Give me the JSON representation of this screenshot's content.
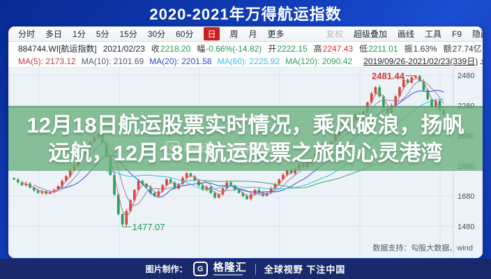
{
  "header": {
    "title": "2020-2021年万得航运指数"
  },
  "toolbar": {
    "left_items": [
      {
        "label": "分时"
      },
      {
        "label": "多日"
      },
      {
        "label": "1分"
      },
      {
        "label": "5分"
      },
      {
        "label": "15分"
      },
      {
        "label": "30分"
      },
      {
        "label": "60分"
      },
      {
        "label": "日"
      },
      {
        "label": "周"
      },
      {
        "label": "月"
      },
      {
        "label": "更多"
      }
    ],
    "right_items": [
      {
        "label": "复权"
      },
      {
        "label": "超级叠加"
      },
      {
        "label": "画线"
      },
      {
        "label": "工具"
      },
      {
        "label": "F9"
      },
      {
        "label": "隐藏"
      }
    ]
  },
  "info_row": {
    "symbol": "884744.WI[航运指数]",
    "date": "2021/02/23",
    "fields": [
      {
        "label": "收",
        "value": "2218.20",
        "color": "#189a50"
      },
      {
        "label": "幅",
        "value": "-0.66%(-14.82)",
        "color": "#189a50"
      },
      {
        "label": "开",
        "value": "2222.15",
        "color": "#189a50"
      },
      {
        "label": "高",
        "value": "2247.43",
        "color": "#d8322f"
      },
      {
        "label": "低",
        "value": "2211.01",
        "color": "#189a50"
      },
      {
        "label": "振",
        "value": "1.63%",
        "color": "#33363e"
      },
      {
        "label": "额",
        "value": "27.74亿",
        "color": "#33363e"
      }
    ]
  },
  "ma_row": {
    "items": [
      {
        "label": "MA(5):",
        "value": "2173.12",
        "color": "#c43a40"
      },
      {
        "label": "MA(10):",
        "value": "2101.69",
        "color": "#4f5b6e"
      },
      {
        "label": "MA(20):",
        "value": "2201.58",
        "color": "#2c49cc"
      },
      {
        "label": "MA(60):",
        "value": "2225.92",
        "color": "#38bede"
      },
      {
        "label": "MA(120):",
        "value": "2090.42",
        "color": "#2fa05e"
      }
    ],
    "range": "2019/09/26-2021/02/23(339日)",
    "dropdown_icon": "▼"
  },
  "overlay": {
    "line1": "12月18日航运股票实时情况，乘风破浪，扬帆",
    "line2": "远航，12月18日航运股票之旅的心灵港湾",
    "watermark": {
      "logo_letter": "G",
      "brand": "格隆汇",
      "divider": "|",
      "text": "勾股大数据"
    }
  },
  "chart_note": "数据支持：勾股大数据、wind",
  "footer": {
    "prefix": "图片制作：",
    "logo_letter": "G",
    "brand": "格隆汇",
    "slogan": "全球视野 下注中国"
  },
  "chart_data": {
    "type": "candlestick",
    "title": "万得航运指数 日K线",
    "x_range_label": "2019/09/26-2021/02/23(339日)",
    "y_ticks": [
      2480,
      2280,
      2080,
      1880,
      1680,
      1480
    ],
    "y_range": [
      1430,
      2540
    ],
    "grid": true,
    "up_color": "#d8433b",
    "down_color": "#1fa358",
    "annotations": {
      "high": {
        "value": 2481.44,
        "index": 100
      },
      "low": {
        "value": 1477.07,
        "index": 27
      },
      "last_close": 2218.2,
      "prev_change_pct": "-0.66%"
    },
    "closes": [
      1790,
      1772,
      1752,
      1763,
      1736,
      1718,
      1701,
      1713,
      1696,
      1706,
      1722,
      1746,
      1781,
      1812,
      1851,
      1882,
      1921,
      1962,
      2001,
      2042,
      2071,
      2092,
      2031,
      1941,
      1821,
      1691,
      1561,
      1492,
      1581,
      1652,
      1721,
      1781,
      1762,
      1741,
      1701,
      1681,
      1711,
      1751,
      1791,
      1771,
      1731,
      1761,
      1801,
      1831,
      1811,
      1781,
      1751,
      1721,
      1741,
      1701,
      1671,
      1691,
      1731,
      1771,
      1751,
      1721,
      1701,
      1681,
      1661,
      1691,
      1721,
      1701,
      1681,
      1701,
      1731,
      1761,
      1791,
      1821,
      1851,
      1831,
      1861,
      1891,
      1871,
      1901,
      1931,
      1961,
      1991,
      2021,
      2001,
      2041,
      2081,
      2121,
      2161,
      2141,
      2181,
      2221,
      2201,
      2241,
      2301,
      2361,
      2401,
      2341,
      2261,
      2231,
      2281,
      2341,
      2401,
      2451,
      2431,
      2466,
      2476,
      2441,
      2381,
      2321,
      2271,
      2311,
      2251,
      2218.2
    ],
    "ma_lines": [
      {
        "name": "MA5",
        "window": 3,
        "color": "#d46a78"
      },
      {
        "name": "MA10",
        "window": 6,
        "color": "#8b93a8"
      },
      {
        "name": "MA20",
        "window": 12,
        "color": "#3d5bd4"
      },
      {
        "name": "MA60",
        "window": 24,
        "color": "#39c2e0"
      },
      {
        "name": "MA120",
        "window": 48,
        "color": "#4aa96c"
      }
    ]
  }
}
